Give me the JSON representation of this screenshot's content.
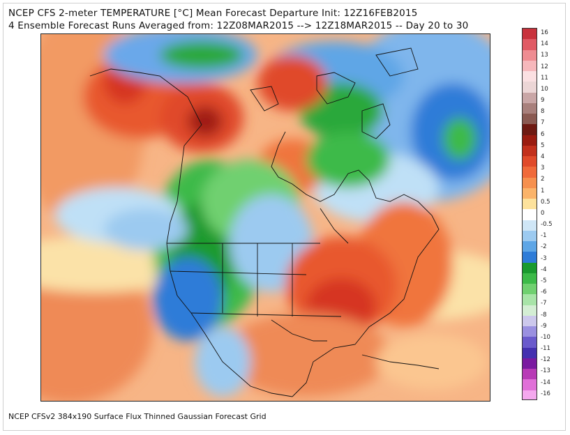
{
  "header": {
    "title_line1": "NCEP CFS 2-meter TEMPERATURE [°C] Mean Forecast Departure Init: 12Z16FEB2015",
    "title_line2": "4 Ensemble Forecast Runs Averaged from: 12Z08MAR2015 --> 12Z18MAR2015 -- Day 20 to 30"
  },
  "footer": {
    "text": "NCEP CFSv2 384x190 Surface Flux Thinned Gaussian Forecast Grid"
  },
  "colorbar": {
    "labels": [
      "16",
      "14",
      "13",
      "12",
      "11",
      "10",
      "9",
      "8",
      "7",
      "6",
      "5",
      "4",
      "3",
      "2",
      "1",
      "0.5",
      "0",
      "-0.5",
      "-1",
      "-2",
      "-3",
      "-4",
      "-5",
      "-6",
      "-7",
      "-8",
      "-9",
      "-10",
      "-11",
      "-12",
      "-13",
      "-14",
      "-16"
    ],
    "colors": [
      "#c8323c",
      "#e05a64",
      "#ee8c92",
      "#f6b8bc",
      "#fbe0e2",
      "#ecd6d6",
      "#c9a6a6",
      "#a8807c",
      "#8a5a52",
      "#6e1a12",
      "#9a1c10",
      "#c2301c",
      "#e04a2a",
      "#f06a3a",
      "#f6904e",
      "#fbb46a",
      "#fde29c",
      "#ffffff",
      "#cfe6f6",
      "#9ccaf0",
      "#5ea6e6",
      "#2e7cd8",
      "#1a9a2e",
      "#3cba48",
      "#70d070",
      "#a8e4a8",
      "#d4eed4",
      "#ccc8ec",
      "#9a90e0",
      "#6a5acc",
      "#4430b0",
      "#7a1aa0",
      "#b83ab6",
      "#e070d8",
      "#f4a8ee"
    ]
  },
  "map": {
    "region": "North America",
    "legend_colors": {
      "ocean_warm": "#f6a670",
      "warm": "#ec6a3c",
      "hot": "#d63424",
      "neutral": "#ffffff",
      "cool": "#9ccaf0",
      "cold": "#2e7cd8",
      "very_cold_green": "#2aa83a",
      "light_green": "#70d070"
    }
  }
}
